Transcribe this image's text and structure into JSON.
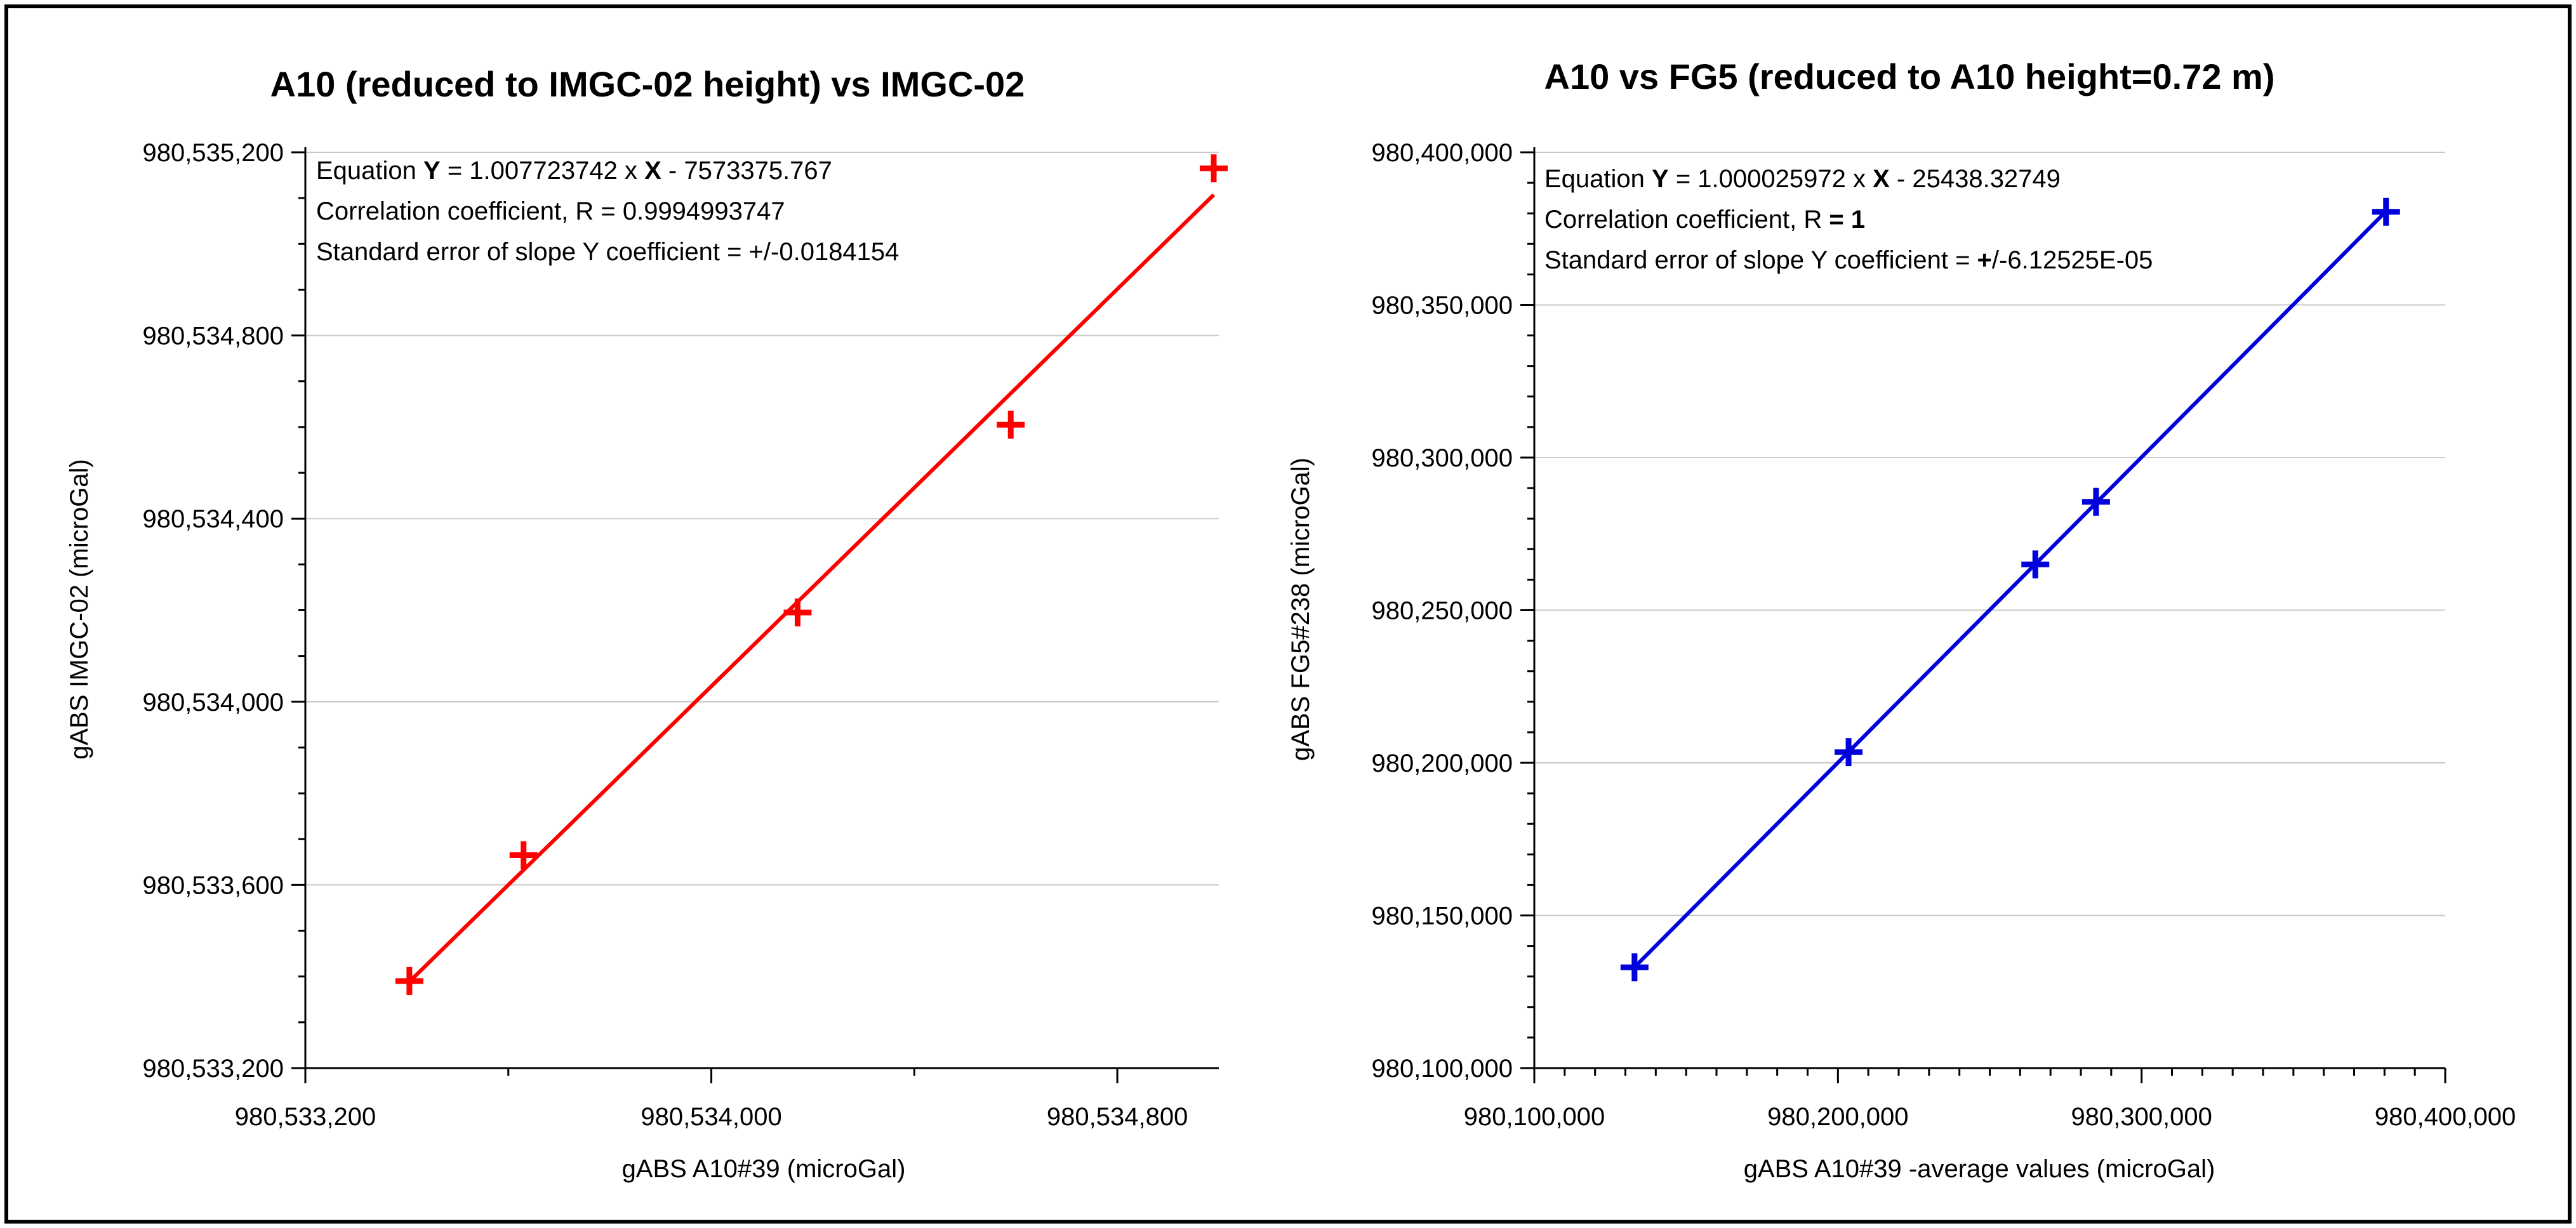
{
  "chart_data": [
    {
      "type": "scatter",
      "title": "A10 (reduced to IMGC-02 height) vs IMGC-02",
      "xlabel": "gABS A10#39 (microGal)",
      "ylabel": "gABS IMGC-02 (microGal)",
      "xlim": [
        980533200,
        980535000
      ],
      "ylim": [
        980533200,
        980535200
      ],
      "x_major_ticks": [
        980533200,
        980534000,
        980534800
      ],
      "x_tick_labels": [
        "980,533,200",
        "980,534,000",
        "980,534,800"
      ],
      "x_minor_step": 400,
      "y_major_ticks": [
        980533200,
        980533600,
        980534000,
        980534400,
        980534800,
        980535200
      ],
      "y_tick_labels": [
        "980,533,200",
        "980,533,600",
        "980,534,000",
        "980,534,400",
        "980,534,800",
        "980,535,200"
      ],
      "y_minor_step": 100,
      "color": "#ff0000",
      "marker": "plus",
      "trendline": true,
      "x": [
        980533405,
        980533630,
        980534170,
        980534590,
        980534990
      ],
      "y": [
        980533390,
        980533665,
        980534195,
        980534605,
        980535165
      ],
      "annotation": {
        "line1_prefix": "Equation ",
        "line1_y": "Y",
        "line1_mid": " = 1.007723742 x ",
        "line1_x": "X",
        "line1_suffix": " - 7573375.767",
        "line2": "Correlation coefficient, R = 0.9994993747",
        "line3": "Standard error of slope Y coefficient = +/-0.0184154"
      }
    },
    {
      "type": "scatter",
      "title": "A10 vs FG5 (reduced to A10 height=0.72 m)",
      "xlabel": "gABS A10#39 -average values (microGal)",
      "ylabel": "gABS FG5#238 (microGal)",
      "xlim": [
        980100000,
        980400000
      ],
      "ylim": [
        980100000,
        980400000
      ],
      "x_major_ticks": [
        980100000,
        980200000,
        980300000,
        980400000
      ],
      "x_tick_labels": [
        "980,100,000",
        "980,200,000",
        "980,300,000",
        "980,400,000"
      ],
      "x_minor_step": 10000,
      "y_major_ticks": [
        980100000,
        980150000,
        980200000,
        980250000,
        980300000,
        980350000,
        980400000
      ],
      "y_tick_labels": [
        "980,100,000",
        "980,150,000",
        "980,200,000",
        "980,250,000",
        "980,300,000",
        "980,350,000",
        "980,400,000"
      ],
      "y_minor_step": 10000,
      "color": "#0000dd",
      "marker": "plus",
      "trendline": true,
      "x": [
        980133000,
        980203500,
        980265000,
        980285000,
        980380500
      ],
      "y": [
        980133000,
        980203500,
        980265000,
        980285500,
        980380500
      ],
      "annotation": {
        "line1_prefix": "Equation ",
        "line1_y": "Y",
        "line1_mid": " = 1.000025972 x ",
        "line1_x": "X",
        "line1_suffix": " - 25438.32749",
        "line2_prefix": "Correlation coefficient, R ",
        "line2_bold": "= 1",
        "line3_prefix": "Standard error of slope Y coefficient = ",
        "line3_bold": "+",
        "line3_suffix": "/-6.12525E-05"
      }
    }
  ]
}
